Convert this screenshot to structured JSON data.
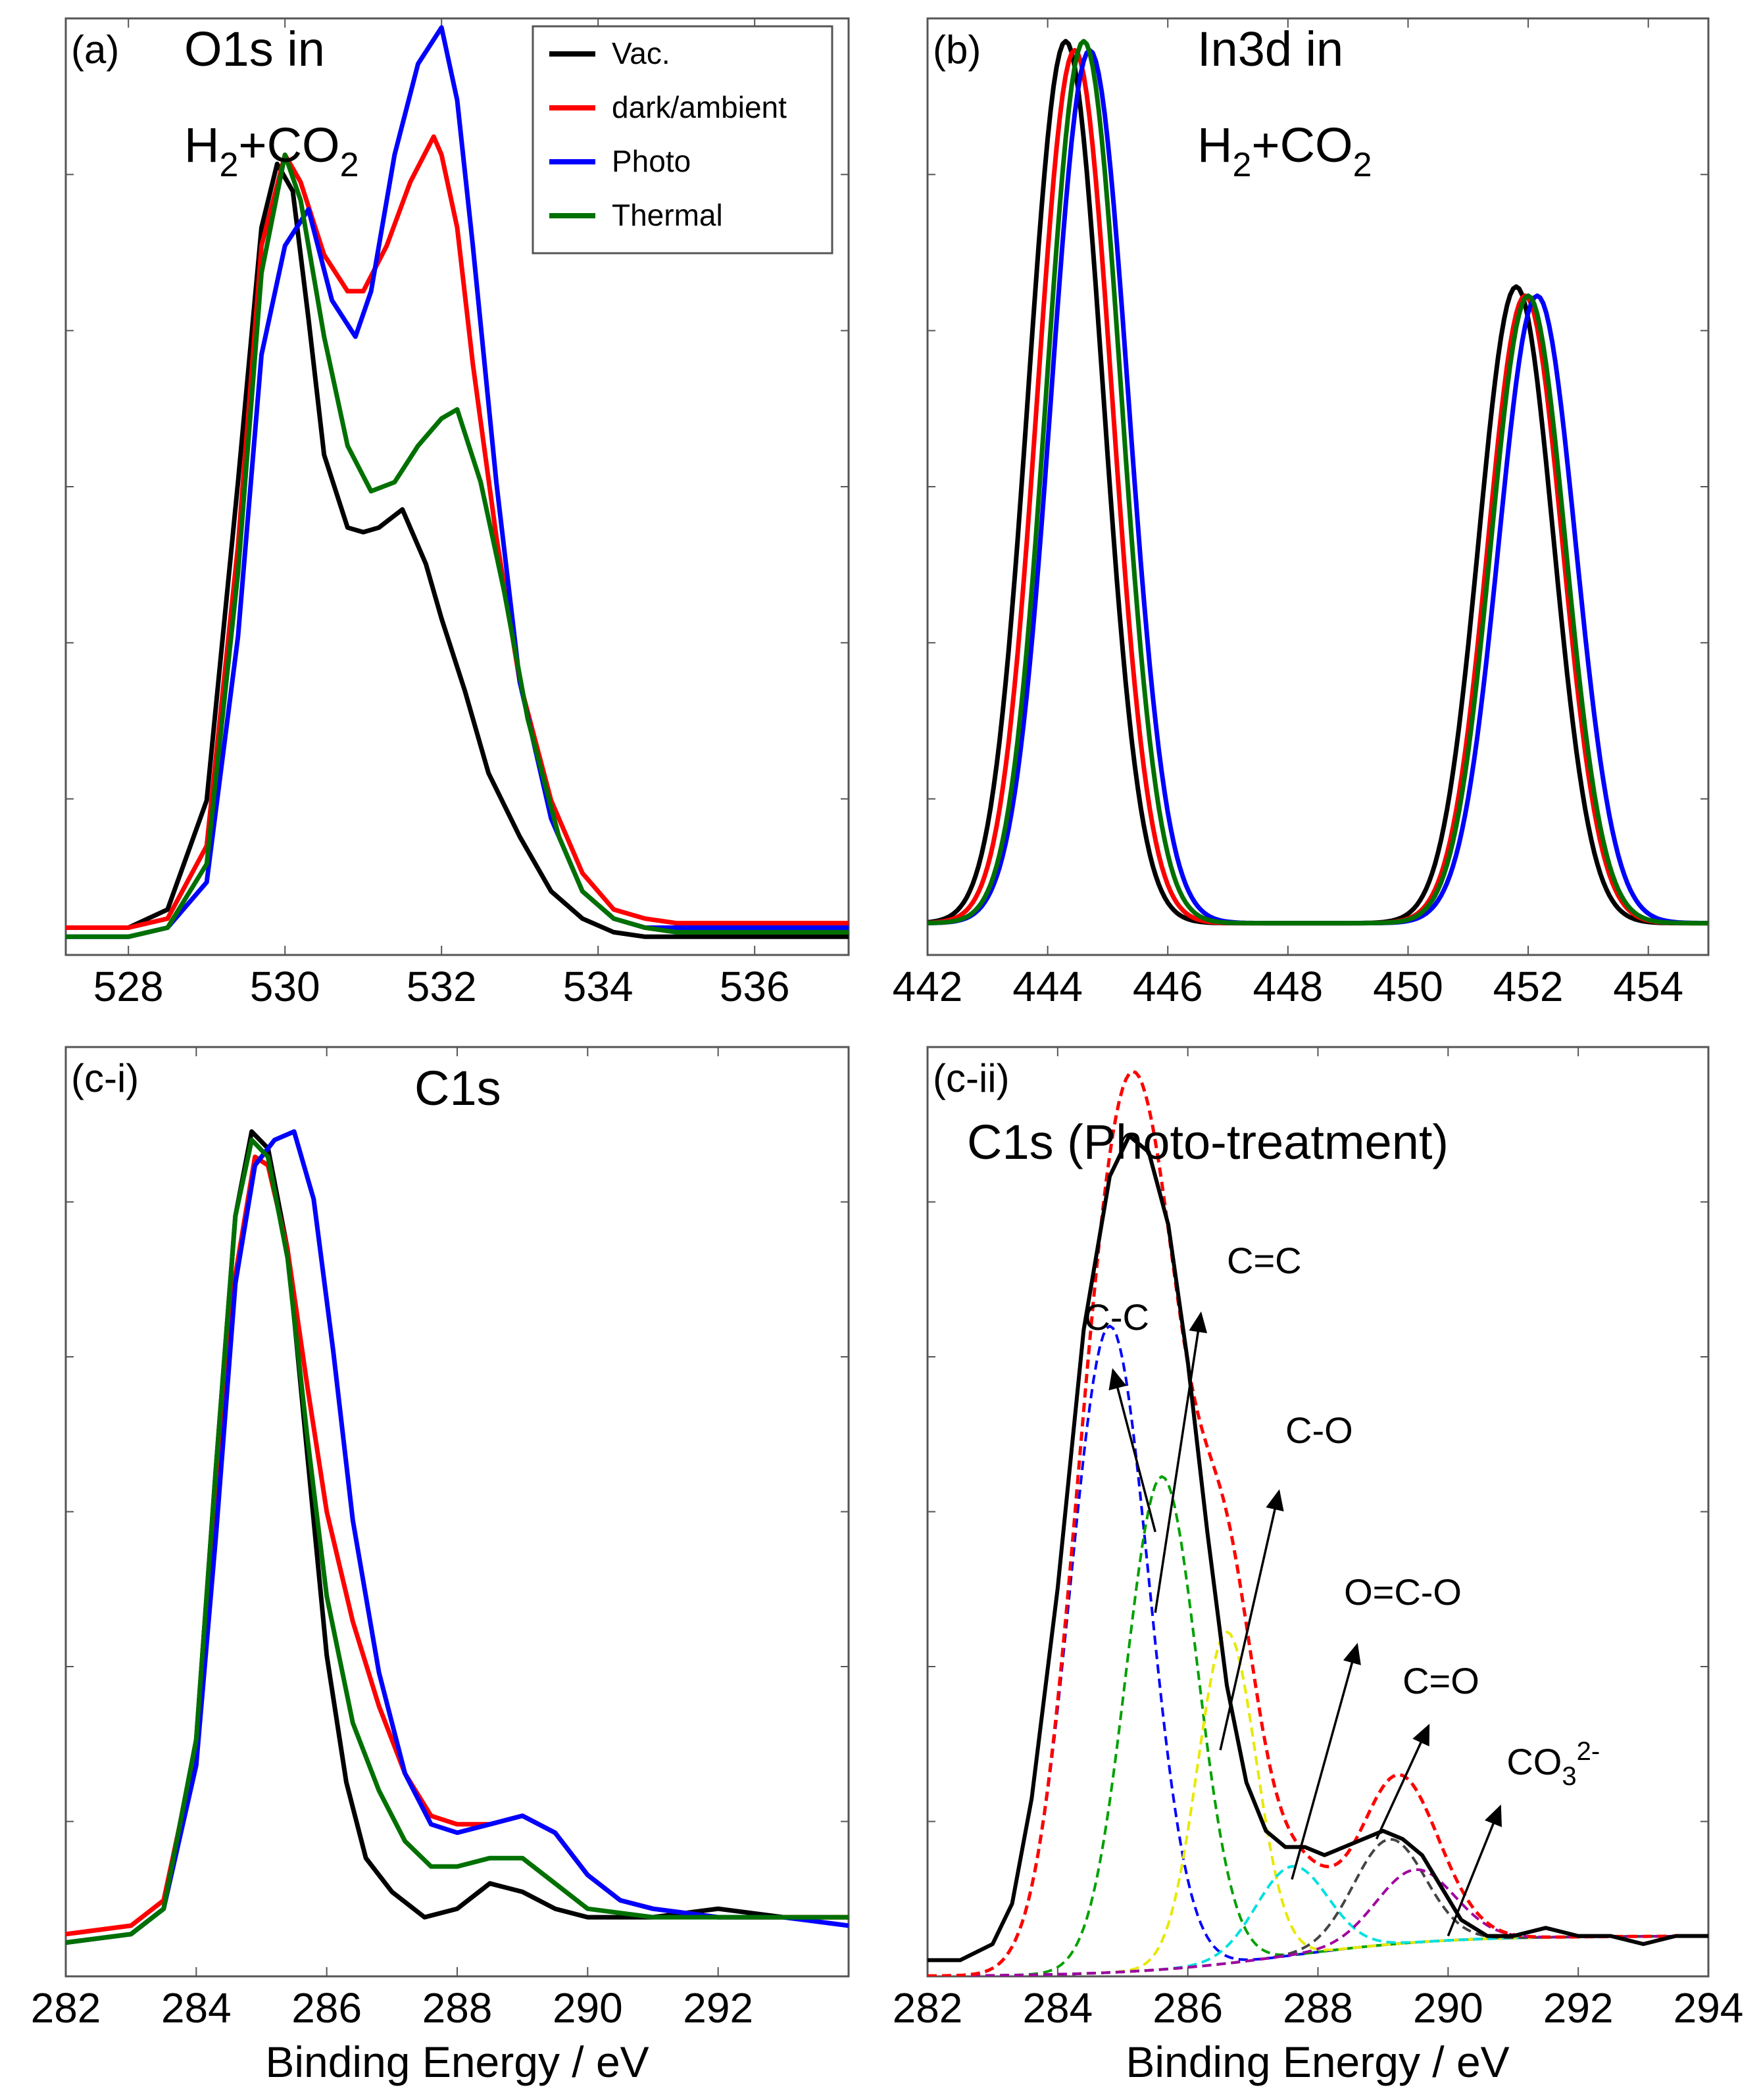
{
  "xlabel": "Binding Energy / eV",
  "colors": {
    "vac": "#000000",
    "dark": "#ff0000",
    "photo": "#0000ff",
    "thermal": "#007000",
    "cc": "#0000ff",
    "ceqc": "#00a000",
    "co": "#e8e800",
    "oco": "#00e0e0",
    "ceqo": "#444444",
    "co3": "#a000a0",
    "envelope": "#ff0000"
  },
  "chart_data": [
    {
      "id": "a",
      "type": "line",
      "panel_label": "(a)",
      "title": "O1s in",
      "title_line2_base": "H",
      "title_line2_sub": "2",
      "title_line2_mid": "+CO",
      "title_line2_sub2": "2",
      "xlim": [
        527.2,
        537.2
      ],
      "ylim": [
        0,
        1.03
      ],
      "xticks": [
        "528",
        "530",
        "532",
        "534",
        "536"
      ],
      "legend": [
        "Vac.",
        "dark/ambient",
        "Photo",
        "Thermal"
      ],
      "series": [
        {
          "name": "Vac.",
          "color_key": "vac",
          "x": [
            527.2,
            528,
            528.5,
            529,
            529.4,
            529.7,
            529.9,
            530.1,
            530.3,
            530.5,
            530.8,
            531.0,
            531.2,
            531.5,
            531.8,
            532.0,
            532.3,
            532.6,
            533.0,
            533.4,
            533.8,
            534.2,
            534.6,
            535,
            536,
            537.2
          ],
          "y": [
            0.03,
            0.03,
            0.05,
            0.17,
            0.52,
            0.8,
            0.87,
            0.84,
            0.7,
            0.55,
            0.47,
            0.465,
            0.47,
            0.49,
            0.43,
            0.37,
            0.29,
            0.2,
            0.13,
            0.07,
            0.04,
            0.025,
            0.02,
            0.02,
            0.02,
            0.02
          ]
        },
        {
          "name": "dark/ambient",
          "color_key": "dark",
          "x": [
            527.2,
            528,
            528.5,
            529,
            529.4,
            529.7,
            530.0,
            530.2,
            530.5,
            530.8,
            531.0,
            531.3,
            531.6,
            531.9,
            532.0,
            532.2,
            532.4,
            532.7,
            533.0,
            533.4,
            533.8,
            534.2,
            534.6,
            535,
            536,
            537.2
          ],
          "y": [
            0.03,
            0.03,
            0.04,
            0.12,
            0.45,
            0.78,
            0.88,
            0.85,
            0.77,
            0.73,
            0.73,
            0.78,
            0.85,
            0.9,
            0.88,
            0.8,
            0.65,
            0.46,
            0.3,
            0.17,
            0.09,
            0.05,
            0.04,
            0.035,
            0.035,
            0.035
          ]
        },
        {
          "name": "Photo",
          "color_key": "photo",
          "x": [
            527.2,
            528,
            528.5,
            529,
            529.4,
            529.7,
            530.0,
            530.3,
            530.6,
            530.9,
            531.1,
            531.4,
            531.7,
            532.0,
            532.2,
            532.4,
            532.7,
            533.0,
            533.4,
            533.8,
            534.2,
            534.6,
            535,
            536,
            537.2
          ],
          "y": [
            0.02,
            0.02,
            0.03,
            0.08,
            0.35,
            0.66,
            0.78,
            0.82,
            0.72,
            0.68,
            0.73,
            0.88,
            0.98,
            1.02,
            0.94,
            0.78,
            0.52,
            0.3,
            0.15,
            0.07,
            0.04,
            0.03,
            0.03,
            0.03,
            0.03
          ]
        },
        {
          "name": "Thermal",
          "color_key": "thermal",
          "x": [
            527.2,
            528,
            528.5,
            529,
            529.4,
            529.7,
            530.0,
            530.2,
            530.5,
            530.8,
            531.1,
            531.4,
            531.7,
            532.0,
            532.2,
            532.5,
            532.8,
            533.1,
            533.5,
            533.8,
            534.2,
            534.6,
            535,
            536,
            537.2
          ],
          "y": [
            0.02,
            0.02,
            0.03,
            0.1,
            0.42,
            0.75,
            0.88,
            0.83,
            0.68,
            0.56,
            0.51,
            0.52,
            0.56,
            0.59,
            0.6,
            0.52,
            0.4,
            0.26,
            0.13,
            0.07,
            0.04,
            0.03,
            0.025,
            0.025,
            0.025
          ]
        }
      ]
    },
    {
      "id": "b",
      "type": "line",
      "panel_label": "(b)",
      "title": "In3d in",
      "title_line2_base": "H",
      "title_line2_sub": "2",
      "title_line2_mid": "+CO",
      "title_line2_sub2": "2",
      "xlim": [
        442,
        455
      ],
      "ylim": [
        0,
        1.03
      ],
      "xticks": [
        "442",
        "444",
        "446",
        "448",
        "450",
        "452",
        "454"
      ],
      "series": [
        {
          "name": "Vac.",
          "color_key": "vac",
          "params": [
            444.3,
            0.97,
            451.8,
            0.7,
            0.62
          ]
        },
        {
          "name": "dark/ambient",
          "color_key": "dark",
          "params": [
            444.45,
            0.96,
            451.95,
            0.69,
            0.62
          ]
        },
        {
          "name": "Photo",
          "color_key": "photo",
          "params": [
            444.7,
            0.96,
            452.15,
            0.69,
            0.64
          ]
        },
        {
          "name": "Thermal",
          "color_key": "thermal",
          "params": [
            444.6,
            0.97,
            452.0,
            0.69,
            0.62
          ]
        }
      ]
    },
    {
      "id": "ci",
      "type": "line",
      "panel_label": "(c-i)",
      "title": "C1s",
      "xlim": [
        282,
        294
      ],
      "ylim": [
        0,
        1.1
      ],
      "xticks": [
        "282",
        "284",
        "286",
        "288",
        "290",
        "292"
      ],
      "series": [
        {
          "name": "Vac.",
          "color_key": "vac",
          "x": [
            282,
            283,
            283.5,
            284,
            284.3,
            284.6,
            284.85,
            285.1,
            285.4,
            285.7,
            286.0,
            286.3,
            286.6,
            287.0,
            287.5,
            288,
            288.5,
            289,
            289.5,
            290,
            291,
            292,
            293,
            294
          ],
          "y": [
            0.04,
            0.05,
            0.08,
            0.28,
            0.6,
            0.9,
            1.0,
            0.98,
            0.86,
            0.62,
            0.38,
            0.23,
            0.14,
            0.1,
            0.07,
            0.08,
            0.11,
            0.1,
            0.08,
            0.07,
            0.07,
            0.08,
            0.07,
            0.07
          ]
        },
        {
          "name": "dark/ambient",
          "color_key": "dark",
          "x": [
            282,
            283,
            283.5,
            284,
            284.3,
            284.6,
            284.9,
            285.1,
            285.4,
            285.7,
            286.0,
            286.4,
            286.8,
            287.2,
            287.6,
            288,
            288.5,
            289,
            289.5,
            290,
            290.5,
            291,
            292,
            293,
            294
          ],
          "y": [
            0.05,
            0.06,
            0.09,
            0.27,
            0.55,
            0.83,
            0.97,
            0.96,
            0.86,
            0.7,
            0.55,
            0.42,
            0.32,
            0.24,
            0.19,
            0.18,
            0.18,
            0.19,
            0.17,
            0.12,
            0.09,
            0.08,
            0.07,
            0.07,
            0.07
          ]
        },
        {
          "name": "Photo",
          "color_key": "photo",
          "x": [
            282,
            283,
            283.5,
            284,
            284.3,
            284.6,
            284.9,
            285.2,
            285.5,
            285.8,
            286.1,
            286.4,
            286.8,
            287.2,
            287.6,
            288,
            288.5,
            289,
            289.5,
            290,
            290.5,
            291,
            292,
            293,
            294
          ],
          "y": [
            0.04,
            0.05,
            0.08,
            0.25,
            0.52,
            0.82,
            0.96,
            0.99,
            1.0,
            0.92,
            0.74,
            0.54,
            0.36,
            0.24,
            0.18,
            0.17,
            0.18,
            0.19,
            0.17,
            0.12,
            0.09,
            0.08,
            0.07,
            0.07,
            0.06
          ]
        },
        {
          "name": "Thermal",
          "color_key": "thermal",
          "x": [
            282,
            283,
            283.5,
            284,
            284.3,
            284.6,
            284.85,
            285.1,
            285.4,
            285.7,
            286.0,
            286.4,
            286.8,
            287.2,
            287.6,
            288,
            288.5,
            289,
            289.5,
            290,
            291,
            292,
            293,
            294
          ],
          "y": [
            0.04,
            0.05,
            0.08,
            0.28,
            0.6,
            0.9,
            0.99,
            0.97,
            0.85,
            0.64,
            0.45,
            0.3,
            0.22,
            0.16,
            0.13,
            0.13,
            0.14,
            0.14,
            0.11,
            0.08,
            0.07,
            0.07,
            0.07,
            0.07
          ]
        }
      ]
    },
    {
      "id": "cii",
      "type": "line",
      "panel_label": "(c-ii)",
      "title": "C1s (Photo-treatment)",
      "xlim": [
        282,
        294
      ],
      "ylim": [
        0,
        1.15
      ],
      "xticks": [
        "282",
        "284",
        "286",
        "288",
        "290",
        "292",
        "294"
      ],
      "measured": {
        "name": "measured",
        "color_key": "vac",
        "x": [
          282,
          282.5,
          283,
          283.3,
          283.6,
          284,
          284.4,
          284.8,
          285.1,
          285.4,
          285.7,
          286.0,
          286.3,
          286.6,
          286.9,
          287.2,
          287.5,
          287.8,
          288.1,
          288.4,
          288.7,
          289.0,
          289.3,
          289.6,
          289.9,
          290.2,
          290.6,
          291,
          291.5,
          292,
          292.5,
          293,
          293.5,
          294
        ],
        "y": [
          0.02,
          0.02,
          0.04,
          0.09,
          0.22,
          0.48,
          0.8,
          0.99,
          1.04,
          1.02,
          0.93,
          0.76,
          0.55,
          0.36,
          0.24,
          0.18,
          0.16,
          0.16,
          0.15,
          0.16,
          0.17,
          0.18,
          0.17,
          0.15,
          0.11,
          0.07,
          0.05,
          0.05,
          0.06,
          0.05,
          0.05,
          0.04,
          0.05,
          0.05
        ]
      },
      "components": [
        {
          "label": "C-C",
          "color_key": "cc",
          "center": 284.8,
          "height": 0.8,
          "sigma": 0.6,
          "label_x": 284.4,
          "label_y": 0.8,
          "arrow_from": [
            285.5,
            0.55
          ],
          "arrow_to": [
            284.85,
            0.75
          ]
        },
        {
          "label": "C=C",
          "color_key": "ceqc",
          "center": 285.6,
          "height": 0.61,
          "sigma": 0.55,
          "label_x": 286.6,
          "label_y": 0.87,
          "arrow_from": [
            285.5,
            0.45
          ],
          "arrow_to": [
            286.2,
            0.82
          ]
        },
        {
          "label": "C-O",
          "color_key": "co",
          "center": 286.6,
          "height": 0.41,
          "sigma": 0.45,
          "label_x": 287.5,
          "label_y": 0.66,
          "arrow_from": [
            286.5,
            0.28
          ],
          "arrow_to": [
            287.4,
            0.6
          ]
        },
        {
          "label": "O=C-O",
          "color_key": "oco",
          "center": 287.6,
          "height": 0.11,
          "sigma": 0.55,
          "label_x": 288.4,
          "label_y": 0.46,
          "arrow_from": [
            287.6,
            0.12
          ],
          "arrow_to": [
            288.6,
            0.41
          ]
        },
        {
          "label": "C=O",
          "color_key": "ceqo",
          "center": 289.1,
          "height": 0.13,
          "sigma": 0.55,
          "label_x": 289.3,
          "label_y": 0.35,
          "arrow_from": [
            288.9,
            0.17
          ],
          "arrow_to": [
            289.7,
            0.31
          ]
        },
        {
          "label": "CO",
          "label_sub": "3",
          "label_sup": "2-",
          "color_key": "co3",
          "center": 289.5,
          "height": 0.09,
          "sigma": 0.6,
          "label_x": 290.9,
          "label_y": 0.25,
          "arrow_from": [
            290.0,
            0.05
          ],
          "arrow_to": [
            290.8,
            0.21
          ]
        }
      ],
      "baseline": {
        "start": 0.0,
        "end": 0.05,
        "center": 287.5,
        "width": 1.2
      }
    }
  ]
}
